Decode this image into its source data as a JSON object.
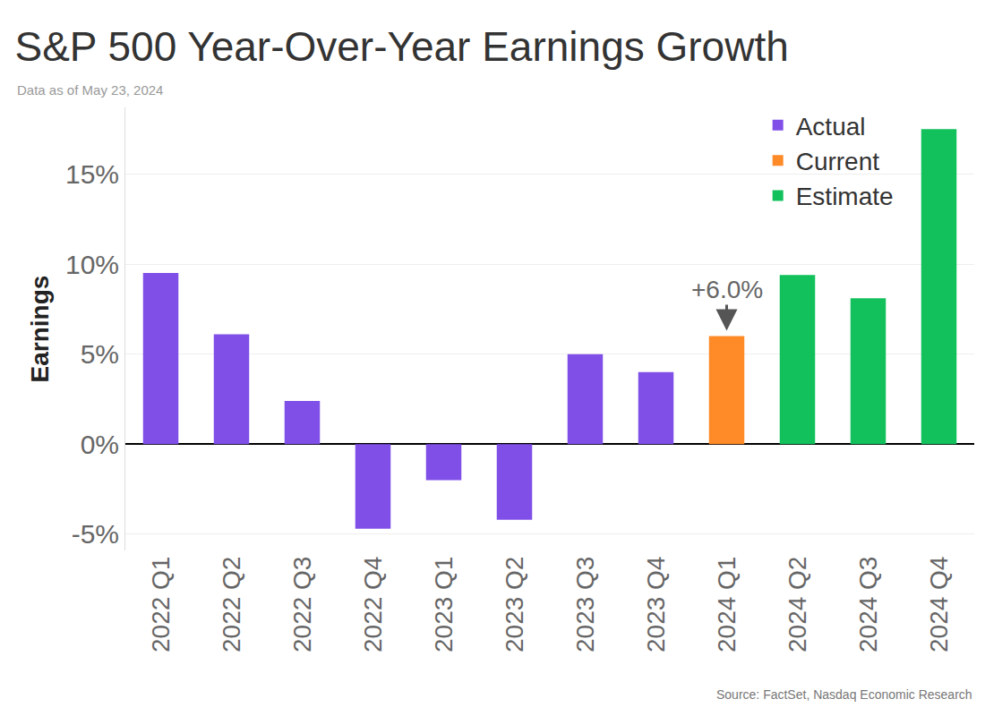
{
  "chart_data": {
    "type": "bar",
    "title": "S&P 500 Year-Over-Year Earnings Growth",
    "subtitle": "Data as of May 23, 2024",
    "y_label": "Earnings",
    "source": "Source: FactSet, Nasdaq Economic Research",
    "categories": [
      "2022 Q1",
      "2022 Q2",
      "2022 Q3",
      "2022 Q4",
      "2023 Q1",
      "2023 Q2",
      "2023 Q3",
      "2023 Q4",
      "2024 Q1",
      "2024 Q2",
      "2024 Q3",
      "2024 Q4"
    ],
    "series": [
      {
        "name": "Actual",
        "color": "#7f4fe8",
        "values": [
          9.5,
          6.1,
          2.4,
          -4.7,
          -2.0,
          -4.2,
          5.0,
          4.0,
          null,
          null,
          null,
          null
        ]
      },
      {
        "name": "Current",
        "color": "#ff8a28",
        "values": [
          null,
          null,
          null,
          null,
          null,
          null,
          null,
          null,
          6.0,
          null,
          null,
          null
        ]
      },
      {
        "name": "Estimate",
        "color": "#12c15c",
        "values": [
          null,
          null,
          null,
          null,
          null,
          null,
          null,
          null,
          null,
          9.4,
          8.1,
          17.5
        ]
      }
    ],
    "ylim": [
      -5.9,
      18.7
    ],
    "yticks": [
      {
        "value": -5,
        "label": "-5%"
      },
      {
        "value": 0,
        "label": "0%"
      },
      {
        "value": 5,
        "label": "5%"
      },
      {
        "value": 10,
        "label": "10%"
      },
      {
        "value": 15,
        "label": "15%"
      }
    ],
    "grid": true,
    "legend": "top right",
    "annotations": [
      {
        "text": "+6.0%",
        "category": "2024 Q1",
        "value": 6.0
      }
    ]
  }
}
